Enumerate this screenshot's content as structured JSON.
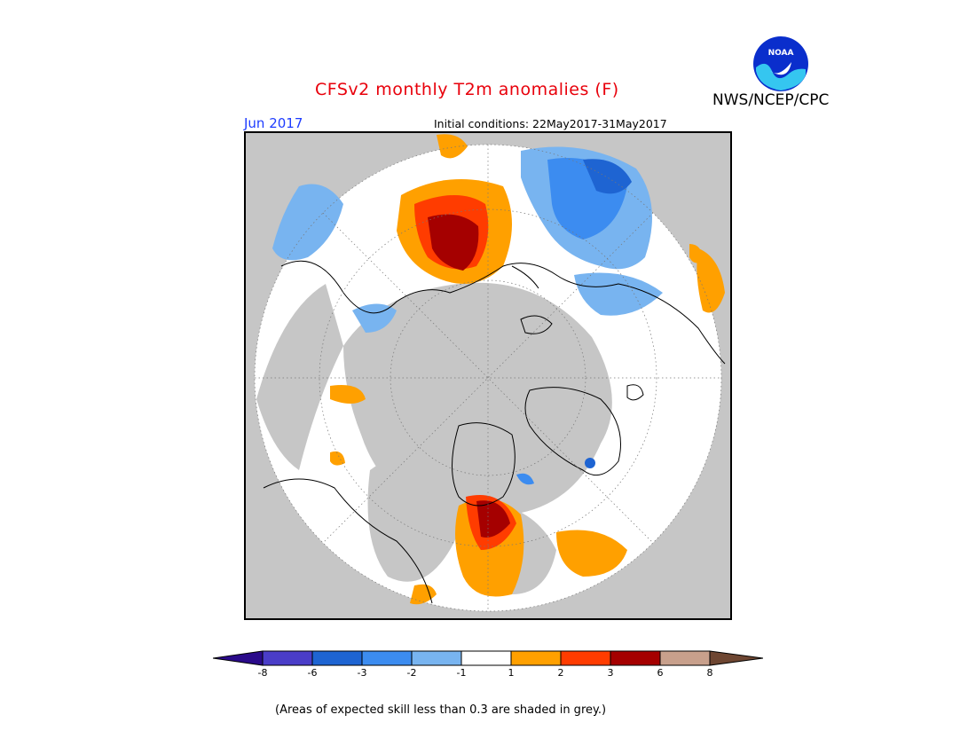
{
  "title": "CFSv2 monthly T2m anomalies (F)",
  "brand": "NWS/NCEP/CPC",
  "logo_text": "NOAA",
  "valid_month": "Jun 2017",
  "initial_conditions": "Initial conditions: 22May2017-31May2017",
  "colorbar": {
    "labels": [
      "-8",
      "-6",
      "-3",
      "-2",
      "-1",
      "1",
      "2",
      "3",
      "6",
      "8"
    ],
    "colors": [
      "#2a0a8a",
      "#4a3dc8",
      "#1e64d2",
      "#3c8cf0",
      "#78b4f0",
      "#ffffff",
      "#ffa000",
      "#ff3c00",
      "#a50000",
      "#c8a08c",
      "#6e4632"
    ]
  },
  "note": "(Areas of expected skill less than 0.3 are shaded in grey.)",
  "colors": {
    "no_skill_grey": "#c6c6c6",
    "neutral": "#ffffff",
    "title_red": "#e8000b",
    "month_blue": "#1e3cff"
  }
}
